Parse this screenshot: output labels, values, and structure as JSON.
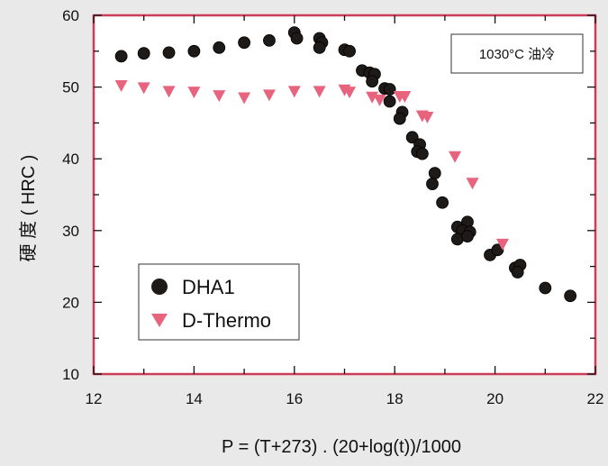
{
  "chart_data": {
    "type": "scatter",
    "title": "",
    "xlabel": "P = (T+273) . (20+log(t))/1000",
    "ylabel": "硬 度 ( HRC )",
    "xlim": [
      12,
      22
    ],
    "ylim": [
      10,
      60
    ],
    "xticks": [
      12,
      14,
      16,
      18,
      20,
      22
    ],
    "yticks": [
      10,
      20,
      30,
      40,
      50,
      60
    ],
    "grid": false,
    "annotation": "1030°C 油冷",
    "legend": {
      "position": "lower-left"
    },
    "series": [
      {
        "name": "DHA1",
        "marker": "circle",
        "color": "#1e1a18",
        "points": [
          [
            12.55,
            54.3
          ],
          [
            13.0,
            54.7
          ],
          [
            13.5,
            54.8
          ],
          [
            14.0,
            55.0
          ],
          [
            14.5,
            55.5
          ],
          [
            15.0,
            56.2
          ],
          [
            15.5,
            56.5
          ],
          [
            16.0,
            57.6
          ],
          [
            16.05,
            56.8
          ],
          [
            16.5,
            56.8
          ],
          [
            16.55,
            56.2
          ],
          [
            16.5,
            55.5
          ],
          [
            17.0,
            55.2
          ],
          [
            17.1,
            55.0
          ],
          [
            17.35,
            52.3
          ],
          [
            17.5,
            52.0
          ],
          [
            17.6,
            51.8
          ],
          [
            17.55,
            50.8
          ],
          [
            17.8,
            49.8
          ],
          [
            17.9,
            49.7
          ],
          [
            17.9,
            48.0
          ],
          [
            18.15,
            46.5
          ],
          [
            18.1,
            45.6
          ],
          [
            18.35,
            43.0
          ],
          [
            18.5,
            42.0
          ],
          [
            18.45,
            41.0
          ],
          [
            18.55,
            40.7
          ],
          [
            18.8,
            38.0
          ],
          [
            18.75,
            36.5
          ],
          [
            18.95,
            33.9
          ],
          [
            19.25,
            30.5
          ],
          [
            19.45,
            31.2
          ],
          [
            19.35,
            30.0
          ],
          [
            19.5,
            29.8
          ],
          [
            19.25,
            28.8
          ],
          [
            19.45,
            29.2
          ],
          [
            19.9,
            26.6
          ],
          [
            20.05,
            27.3
          ],
          [
            20.4,
            24.8
          ],
          [
            20.5,
            25.2
          ],
          [
            20.45,
            24.2
          ],
          [
            21.0,
            22.0
          ],
          [
            21.5,
            20.9
          ]
        ]
      },
      {
        "name": "D-Thermo",
        "marker": "triangle-down",
        "color": "#e8647e",
        "points": [
          [
            12.55,
            50.2
          ],
          [
            13.0,
            49.9
          ],
          [
            13.5,
            49.4
          ],
          [
            14.0,
            49.3
          ],
          [
            14.5,
            48.8
          ],
          [
            15.0,
            48.5
          ],
          [
            15.5,
            48.9
          ],
          [
            16.0,
            49.4
          ],
          [
            16.5,
            49.4
          ],
          [
            17.0,
            49.6
          ],
          [
            17.1,
            49.3
          ],
          [
            17.55,
            48.6
          ],
          [
            17.7,
            48.2
          ],
          [
            18.1,
            48.7
          ],
          [
            18.2,
            48.7
          ],
          [
            18.55,
            46.0
          ],
          [
            18.65,
            45.8
          ],
          [
            19.2,
            40.3
          ],
          [
            19.55,
            36.6
          ],
          [
            20.15,
            28.1
          ]
        ]
      }
    ]
  }
}
